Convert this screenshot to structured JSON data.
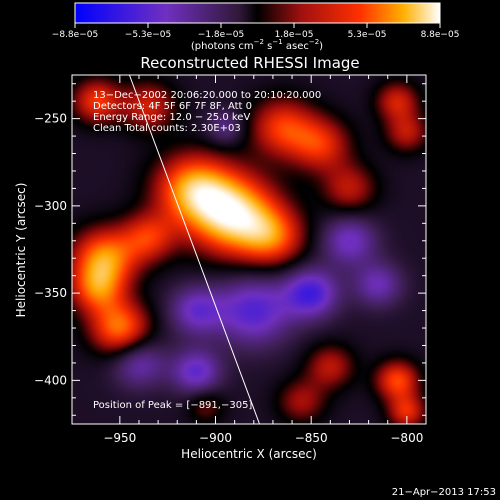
{
  "chart_data": {
    "type": "heatmap",
    "title": "Reconstructed RHESSI Image",
    "xlabel": "Heliocentric X (arcsec)",
    "ylabel": "Heliocentric Y (arcsec)",
    "xlim": [
      -975,
      -790
    ],
    "ylim": [
      -425,
      -225
    ],
    "x_ticks": [
      -950,
      -900,
      -850,
      -800
    ],
    "x_tick_labels": [
      "−950",
      "−900",
      "−850",
      "−800"
    ],
    "y_ticks": [
      -250,
      -300,
      -350,
      -400
    ],
    "y_tick_labels": [
      "−250",
      "−300",
      "−350",
      "−400"
    ],
    "colorbar": {
      "tick_labels": [
        "−8.8e−05",
        "−5.3e−05",
        "−1.8e−05",
        "1.8e−05",
        "5.3e−05",
        "8.8e−05"
      ],
      "range": [
        -8.8e-05,
        8.8e-05
      ],
      "units_text": "(photons cm",
      "units_exp1": "−2",
      "units_mid": " s",
      "units_exp2": "−1",
      "units_end": " asec",
      "units_exp3": "−2",
      "units_close": ")"
    },
    "annotations": [
      "13−Dec−2002 20:06:20.000 to 20:10:20.000",
      "Detectors: 4F 5F 6F 7F 8F, Att 0",
      "Energy Range: 12.0 − 25.0 keV",
      "Clean    Total counts: 2.30E+03"
    ],
    "peak_label": "Position of Peak = [−891,−305]",
    "peak": [
      -891,
      -305
    ],
    "limb_line": [
      [
        -945,
        -225
      ],
      [
        -877,
        -425
      ]
    ],
    "sources": [
      {
        "x": -891,
        "y": -305,
        "sigma": 16,
        "amp": 1.0
      },
      {
        "x": -912,
        "y": -290,
        "sigma": 14,
        "amp": 0.75
      },
      {
        "x": -870,
        "y": -318,
        "sigma": 12,
        "amp": 0.55
      },
      {
        "x": -958,
        "y": -330,
        "sigma": 12,
        "amp": 0.75
      },
      {
        "x": -962,
        "y": -348,
        "sigma": 10,
        "amp": 0.55
      },
      {
        "x": -950,
        "y": -370,
        "sigma": 11,
        "amp": 0.7
      },
      {
        "x": -935,
        "y": -318,
        "sigma": 10,
        "amp": 0.5
      },
      {
        "x": -962,
        "y": -240,
        "sigma": 9,
        "amp": 0.55
      },
      {
        "x": -935,
        "y": -243,
        "sigma": 10,
        "amp": 0.45
      },
      {
        "x": -865,
        "y": -255,
        "sigma": 12,
        "amp": 0.55
      },
      {
        "x": -845,
        "y": -265,
        "sigma": 11,
        "amp": 0.5
      },
      {
        "x": -830,
        "y": -290,
        "sigma": 10,
        "amp": 0.4
      },
      {
        "x": -805,
        "y": -240,
        "sigma": 8,
        "amp": 0.45
      },
      {
        "x": -800,
        "y": -258,
        "sigma": 8,
        "amp": 0.4
      },
      {
        "x": -840,
        "y": -392,
        "sigma": 9,
        "amp": 0.4
      },
      {
        "x": -855,
        "y": -412,
        "sigma": 9,
        "amp": 0.35
      },
      {
        "x": -805,
        "y": -400,
        "sigma": 8,
        "amp": 0.6
      },
      {
        "x": -800,
        "y": -418,
        "sigma": 7,
        "amp": 0.5
      },
      {
        "x": -905,
        "y": -415,
        "sigma": 7,
        "amp": 0.25
      },
      {
        "x": -880,
        "y": -360,
        "sigma": 14,
        "amp": -0.55
      },
      {
        "x": -850,
        "y": -350,
        "sigma": 10,
        "amp": -0.6
      },
      {
        "x": -910,
        "y": -360,
        "sigma": 10,
        "amp": -0.45
      },
      {
        "x": -910,
        "y": -395,
        "sigma": 9,
        "amp": -0.5
      },
      {
        "x": -830,
        "y": -320,
        "sigma": 10,
        "amp": -0.45
      },
      {
        "x": -815,
        "y": -345,
        "sigma": 9,
        "amp": -0.4
      },
      {
        "x": -940,
        "y": -390,
        "sigma": 10,
        "amp": -0.4
      },
      {
        "x": -895,
        "y": -255,
        "sigma": 7,
        "amp": -0.3
      }
    ]
  },
  "footer": {
    "timestamp": "21−Apr−2013 17:53"
  }
}
